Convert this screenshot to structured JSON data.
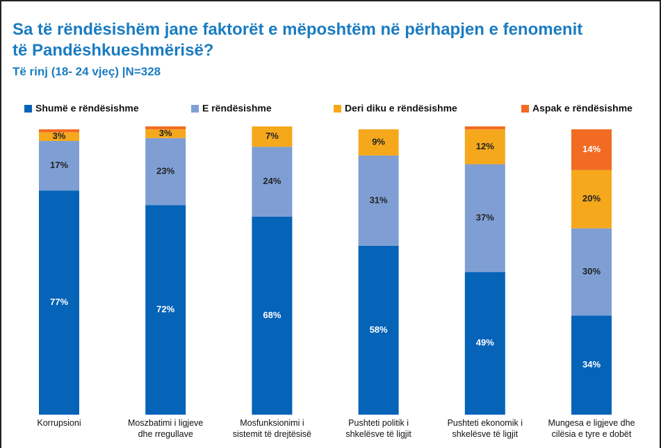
{
  "chart_data": {
    "type": "stacked_bar",
    "title": "Sa të rëndësishëm jane faktorët e mëposhtëm në përhapjen e fenomenit të Pandëshkueshmërisë?",
    "subtitle": "Të rinj (18- 24 vjeç) |N=328",
    "categories": [
      "Korrupsioni",
      "Moszbatimi  i ligjeve\ndhe rregullave",
      "Mosfunksionimi i\nsistemit të drejtësisë",
      "Pushteti politik i\nshkelësve të ligjit",
      "Pushteti ekonomik i\nshkelësve të ligjit",
      "Mungesa e ligjeve dhe\ncilësia e tyre e dobët"
    ],
    "series": [
      {
        "name": "Shumë e rëndësishme",
        "color": "#0563b8",
        "values": [
          77,
          72,
          68,
          58,
          49,
          34
        ],
        "value_labels": [
          "77%",
          "72%",
          "68%",
          "58%",
          "49%",
          "34%"
        ]
      },
      {
        "name": "E rëndësishme",
        "color": "#7f9fd4",
        "values": [
          17,
          23,
          24,
          31,
          37,
          30
        ],
        "value_labels": [
          "17%",
          "23%",
          "24%",
          "31%",
          "37%",
          "30%"
        ]
      },
      {
        "name": "Deri diku e rëndësishme",
        "color": "#f5a81c",
        "values": [
          3,
          3,
          7,
          9,
          12,
          20
        ],
        "value_labels": [
          "3%",
          "3%",
          "7%",
          "9%",
          "12%",
          "20%"
        ]
      },
      {
        "name": "Aspak e rëndësishme",
        "color": "#f26b22",
        "values": [
          1,
          1,
          0,
          0,
          1,
          14
        ],
        "value_labels": [
          null,
          null,
          null,
          null,
          null,
          "14%"
        ]
      }
    ]
  }
}
